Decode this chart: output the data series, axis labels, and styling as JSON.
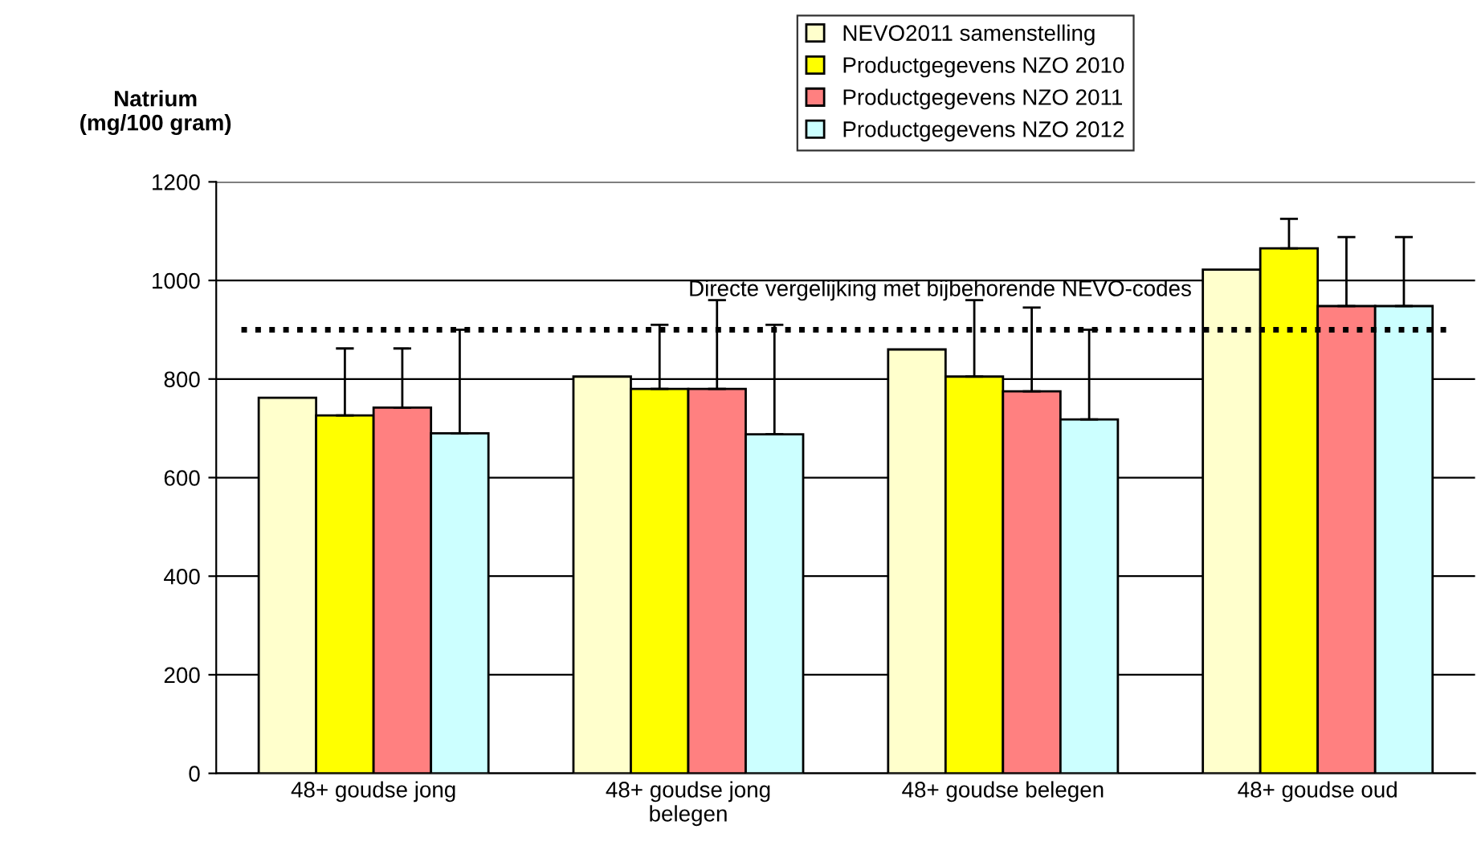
{
  "chart_data": {
    "type": "bar",
    "ylabel": "Natrium\n(mg/100 gram)",
    "categories": [
      "48+ goudse jong",
      "48+ goudse jong\nbelegen",
      "48+ goudse belegen",
      "48+ goudse oud"
    ],
    "series": [
      {
        "name": "NEVO2011 samenstelling",
        "color": "#ffffcc",
        "values": [
          762,
          805,
          860,
          1022
        ]
      },
      {
        "name": "Productgegevens NZO 2010",
        "color": "#ffff00",
        "values": [
          726,
          780,
          805,
          1065
        ],
        "errors": [
          [
            726,
            862
          ],
          [
            780,
            910
          ],
          [
            805,
            960
          ],
          [
            1065,
            1125
          ]
        ]
      },
      {
        "name": "Productgegevens NZO 2011",
        "color": "#ff8080",
        "values": [
          742,
          780,
          775,
          948
        ],
        "errors": [
          [
            742,
            862
          ],
          [
            780,
            960
          ],
          [
            775,
            945
          ],
          [
            948,
            1088
          ]
        ]
      },
      {
        "name": "Productgegevens NZO 2012",
        "color": "#ccffff",
        "values": [
          690,
          688,
          718,
          948
        ],
        "errors": [
          [
            690,
            900
          ],
          [
            688,
            910
          ],
          [
            718,
            900
          ],
          [
            948,
            1088
          ]
        ]
      }
    ],
    "ylim": [
      0,
      1200
    ],
    "yticks": [
      0,
      200,
      400,
      600,
      800,
      1000,
      1200
    ],
    "grid": "y",
    "legend": "top right",
    "ref_lines": [
      {
        "axis": "y",
        "value": 900,
        "label": "Directe vergelijking met bijbehorende NEVO-codes",
        "color": "#000000",
        "line_style": "dotted"
      }
    ]
  }
}
